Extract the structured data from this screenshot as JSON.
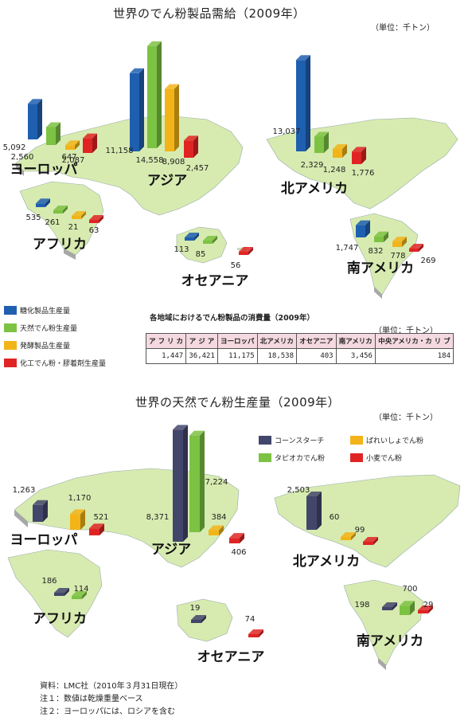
{
  "chart_data": [
    {
      "type": "bar",
      "title": "世界のでん粉製品需給（2009年）",
      "unit": "（単位：千トン）",
      "legend": [
        "糖化製品生産量",
        "天然でん粉生産量",
        "発酵製品生産量",
        "化工でん粉・膠着剤生産量"
      ],
      "colors": [
        "#1f5fb0",
        "#7cc243",
        "#f2b418",
        "#e02424"
      ],
      "regions": [
        {
          "name": "ヨーロッパ",
          "values": [
            5092,
            2560,
            647,
            2087
          ]
        },
        {
          "name": "アジア",
          "values": [
            11158,
            14558,
            8908,
            2457
          ]
        },
        {
          "name": "北アメリカ",
          "values": [
            13037,
            2329,
            1248,
            1776
          ]
        },
        {
          "name": "アフリカ",
          "values": [
            535,
            261,
            21,
            63
          ]
        },
        {
          "name": "オセアニア",
          "values": [
            113,
            85,
            null,
            56
          ]
        },
        {
          "name": "南アメリカ",
          "values": [
            1747,
            832,
            778,
            269
          ]
        }
      ]
    },
    {
      "type": "bar",
      "title": "世界の天然でん粉生産量（2009年）",
      "unit": "（単位：千トン）",
      "legend": [
        "コーンスターチ",
        "ばれいしょでん粉",
        "タピオカでん粉",
        "小麦でん粉"
      ],
      "colors": [
        "#43466b",
        "#f2b418",
        "#7cc243",
        "#e02424"
      ],
      "regions": [
        {
          "name": "ヨーロッパ",
          "values": [
            1263,
            1170,
            null,
            521
          ]
        },
        {
          "name": "アジア",
          "values": [
            8371,
            384,
            7224,
            406
          ]
        },
        {
          "name": "北アメリカ",
          "values": [
            2503,
            60,
            null,
            99
          ]
        },
        {
          "name": "アフリカ",
          "values": [
            186,
            null,
            114,
            null
          ]
        },
        {
          "name": "オセアニア",
          "values": [
            19,
            null,
            null,
            74
          ]
        },
        {
          "name": "南アメリカ",
          "values": [
            198,
            null,
            700,
            29
          ]
        }
      ]
    }
  ],
  "table": {
    "title": "各地域におけるでん粉製品の消費量（2009年）",
    "unit": "（単位：千トン）",
    "headers": [
      "ア フ リ カ",
      "ア ジ ア",
      "ヨーロッパ",
      "北アメリカ",
      "オセアニア",
      "南アメリカ",
      "中央アメリカ・カ リ ブ"
    ],
    "values": [
      "1,447",
      "36,421",
      "11,175",
      "18,538",
      "403",
      "3,456",
      "184"
    ]
  },
  "notes": [
    "資料：LMC社（2010年３月31日現在）",
    "注１：数値は乾燥重量ベース",
    "注２：ヨーロッパには、ロシアを含む"
  ]
}
